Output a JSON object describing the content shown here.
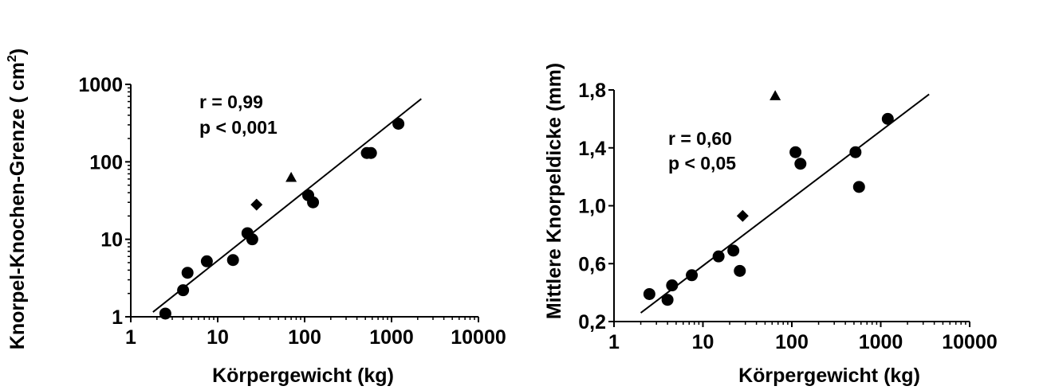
{
  "chart_data": [
    {
      "type": "scatter",
      "x_scale": "log",
      "y_scale": "log",
      "xlabel": "Körpergewicht (kg)",
      "ylabel": "Knorpel-Knochen-Grenze ( cm²)",
      "ylabel_main": "Knorpel-Knochen-Grenze ( cm",
      "ylabel_sup": "2",
      "ylabel_end": ")",
      "xlim": [
        1,
        10000
      ],
      "ylim": [
        1,
        1000
      ],
      "x_ticks": [
        1,
        10,
        100,
        1000,
        10000
      ],
      "x_tick_labels": [
        "1",
        "10",
        "100",
        "1000",
        "10000"
      ],
      "y_ticks": [
        1,
        10,
        100,
        1000
      ],
      "y_tick_labels": [
        "1",
        "10",
        "100",
        "1000"
      ],
      "annotation_r": "r = 0,99",
      "annotation_p": "p < 0,001",
      "grid": false,
      "circles": [
        {
          "x": 2.5,
          "y": 1.1
        },
        {
          "x": 4,
          "y": 2.2
        },
        {
          "x": 4.5,
          "y": 3.7
        },
        {
          "x": 7.5,
          "y": 5.2
        },
        {
          "x": 15,
          "y": 5.4
        },
        {
          "x": 22,
          "y": 12
        },
        {
          "x": 25,
          "y": 10
        },
        {
          "x": 110,
          "y": 37
        },
        {
          "x": 125,
          "y": 30
        },
        {
          "x": 520,
          "y": 130
        },
        {
          "x": 580,
          "y": 130
        },
        {
          "x": 1200,
          "y": 310
        }
      ],
      "diamonds": [
        {
          "x": 28,
          "y": 28
        }
      ],
      "triangles": [
        {
          "x": 70,
          "y": 63
        }
      ],
      "regression_line": {
        "x": [
          1.8,
          2200
        ],
        "y": [
          1.15,
          650
        ]
      }
    },
    {
      "type": "scatter",
      "x_scale": "log",
      "y_scale": "linear",
      "xlabel": "Körpergewicht (kg)",
      "ylabel": "Mittlere Knorpeldicke (mm)",
      "xlim": [
        1,
        10000
      ],
      "ylim": [
        0.2,
        1.8
      ],
      "x_ticks": [
        1,
        10,
        100,
        1000,
        10000
      ],
      "x_tick_labels": [
        "1",
        "10",
        "100",
        "1000",
        "10000"
      ],
      "y_ticks": [
        0.2,
        0.6,
        1.0,
        1.4,
        1.8
      ],
      "y_tick_labels": [
        "0,2",
        "0,6",
        "1,0",
        "1,4",
        "1,8"
      ],
      "annotation_r": "r = 0,60",
      "annotation_p": "p < 0,05",
      "grid": false,
      "circles": [
        {
          "x": 2.5,
          "y": 0.39
        },
        {
          "x": 4,
          "y": 0.35
        },
        {
          "x": 4.5,
          "y": 0.45
        },
        {
          "x": 7.5,
          "y": 0.52
        },
        {
          "x": 15,
          "y": 0.65
        },
        {
          "x": 22,
          "y": 0.69
        },
        {
          "x": 26,
          "y": 0.55
        },
        {
          "x": 110,
          "y": 1.37
        },
        {
          "x": 125,
          "y": 1.29
        },
        {
          "x": 520,
          "y": 1.37
        },
        {
          "x": 570,
          "y": 1.13
        },
        {
          "x": 1200,
          "y": 1.6
        }
      ],
      "diamonds": [
        {
          "x": 28,
          "y": 0.93
        }
      ],
      "triangles": [
        {
          "x": 65,
          "y": 1.76
        }
      ],
      "regression_line": {
        "x": [
          2,
          3500
        ],
        "y": [
          0.26,
          1.77
        ]
      }
    }
  ]
}
